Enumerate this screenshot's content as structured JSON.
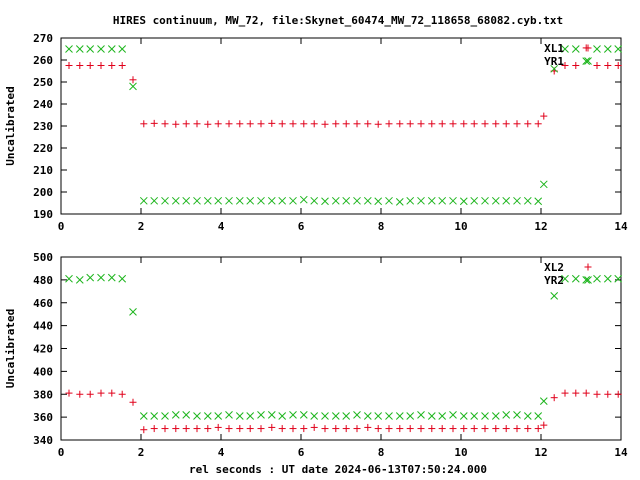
{
  "title": "HIRES continuum, MW_72, file:Skynet_60474_MW_72_118658_68082.cyb.txt",
  "xlabel": "rel seconds : UT date 2024-06-13T07:50:24.000",
  "colors": {
    "plus": "#e0001a",
    "cross": "#1db51d"
  },
  "chart_data": [
    {
      "type": "scatter",
      "ylabel": "Uncalibrated",
      "xlim": [
        0,
        14
      ],
      "ylim": [
        190,
        270
      ],
      "xticks": [
        0,
        2,
        4,
        6,
        8,
        10,
        12,
        14
      ],
      "yticks": [
        190,
        200,
        210,
        220,
        230,
        240,
        250,
        260,
        270
      ],
      "series": [
        {
          "name": "XL1",
          "marker": "plus",
          "x": [
            0.2,
            0.47,
            0.73,
            1.0,
            1.27,
            1.53,
            1.8,
            2.07,
            2.33,
            2.6,
            2.87,
            3.13,
            3.4,
            3.67,
            3.93,
            4.2,
            4.47,
            4.73,
            5.0,
            5.27,
            5.53,
            5.8,
            6.07,
            6.33,
            6.6,
            6.87,
            7.13,
            7.4,
            7.67,
            7.93,
            8.2,
            8.47,
            8.73,
            9.0,
            9.27,
            9.53,
            9.8,
            10.07,
            10.33,
            10.6,
            10.87,
            11.13,
            11.4,
            11.67,
            11.93,
            12.07,
            12.33,
            12.6,
            12.87,
            13.13,
            13.4,
            13.67,
            13.93
          ],
          "y": [
            257.5,
            257.5,
            257.5,
            257.5,
            257.5,
            257.5,
            251,
            231,
            231.2,
            231,
            230.8,
            231,
            231,
            230.8,
            231,
            231,
            231,
            231,
            231,
            231.2,
            231,
            231,
            231,
            231,
            230.8,
            231,
            231,
            231,
            231,
            230.8,
            231,
            231,
            231,
            231,
            231,
            231,
            231,
            231,
            231,
            231,
            231,
            231,
            231,
            231,
            231,
            234.5,
            255,
            257.5,
            257.5,
            265.5,
            257.5,
            257.5,
            257.5
          ]
        },
        {
          "name": "YR1",
          "marker": "cross",
          "x": [
            0.2,
            0.47,
            0.73,
            1.0,
            1.27,
            1.53,
            1.8,
            2.07,
            2.33,
            2.6,
            2.87,
            3.13,
            3.4,
            3.67,
            3.93,
            4.2,
            4.47,
            4.73,
            5.0,
            5.27,
            5.53,
            5.8,
            6.07,
            6.33,
            6.6,
            6.87,
            7.13,
            7.4,
            7.67,
            7.93,
            8.2,
            8.47,
            8.73,
            9.0,
            9.27,
            9.53,
            9.8,
            10.07,
            10.33,
            10.6,
            10.87,
            11.13,
            11.4,
            11.67,
            11.93,
            12.07,
            12.33,
            12.6,
            12.87,
            13.13,
            13.4,
            13.67,
            13.93
          ],
          "y": [
            265,
            265,
            265,
            265,
            265,
            265,
            248,
            196,
            196,
            196,
            196,
            196,
            196,
            196,
            196,
            196,
            196,
            196,
            196,
            196,
            196,
            196,
            196.5,
            196,
            195.8,
            196,
            196,
            196,
            196,
            195.8,
            196,
            195.5,
            196,
            196,
            196,
            196,
            196,
            195.8,
            196,
            196,
            196,
            196,
            196,
            196,
            195.8,
            203.5,
            256,
            265,
            265,
            259.5,
            265,
            265,
            265
          ]
        }
      ]
    },
    {
      "type": "scatter",
      "ylabel": "Uncalibrated",
      "xlim": [
        0,
        14
      ],
      "ylim": [
        340,
        500
      ],
      "xticks": [
        0,
        2,
        4,
        6,
        8,
        10,
        12,
        14
      ],
      "yticks": [
        340,
        360,
        380,
        400,
        420,
        440,
        460,
        480,
        500
      ],
      "series": [
        {
          "name": "XL2",
          "marker": "plus",
          "x": [
            0.2,
            0.47,
            0.73,
            1.0,
            1.27,
            1.53,
            1.8,
            2.07,
            2.33,
            2.6,
            2.87,
            3.13,
            3.4,
            3.67,
            3.93,
            4.2,
            4.47,
            4.73,
            5.0,
            5.27,
            5.53,
            5.8,
            6.07,
            6.33,
            6.6,
            6.87,
            7.13,
            7.4,
            7.67,
            7.93,
            8.2,
            8.47,
            8.73,
            9.0,
            9.27,
            9.53,
            9.8,
            10.07,
            10.33,
            10.6,
            10.87,
            11.13,
            11.4,
            11.67,
            11.93,
            12.07,
            12.33,
            12.6,
            12.87,
            13.13,
            13.4,
            13.67,
            13.93
          ],
          "y": [
            381,
            380,
            380,
            381,
            381,
            380,
            373,
            349,
            350,
            350,
            350,
            350,
            350,
            350,
            351,
            350,
            350,
            350,
            350,
            351,
            350,
            350,
            350,
            351,
            350,
            350,
            350,
            350,
            351,
            350,
            350,
            350,
            350,
            350,
            350,
            350,
            350,
            350,
            350,
            350,
            350,
            350,
            350,
            350,
            350,
            353,
            377,
            381,
            381,
            381,
            380,
            380,
            380
          ]
        },
        {
          "name": "YR2",
          "marker": "cross",
          "x": [
            0.2,
            0.47,
            0.73,
            1.0,
            1.27,
            1.53,
            1.8,
            2.07,
            2.33,
            2.6,
            2.87,
            3.13,
            3.4,
            3.67,
            3.93,
            4.2,
            4.47,
            4.73,
            5.0,
            5.27,
            5.53,
            5.8,
            6.07,
            6.33,
            6.6,
            6.87,
            7.13,
            7.4,
            7.67,
            7.93,
            8.2,
            8.47,
            8.73,
            9.0,
            9.27,
            9.53,
            9.8,
            10.07,
            10.33,
            10.6,
            10.87,
            11.13,
            11.4,
            11.67,
            11.93,
            12.07,
            12.33,
            12.6,
            12.87,
            13.13,
            13.4,
            13.67,
            13.93
          ],
          "y": [
            481,
            480,
            482,
            482,
            482,
            481,
            452,
            361,
            361,
            361,
            362,
            362,
            361,
            361,
            361,
            362,
            361,
            361,
            362,
            362,
            361,
            362,
            362,
            361,
            361,
            361,
            361,
            362,
            361,
            361,
            361,
            361,
            361,
            362,
            361,
            361,
            362,
            361,
            361,
            361,
            361,
            362,
            362,
            361,
            361,
            374,
            466,
            481,
            481,
            480,
            481,
            481,
            481
          ]
        }
      ]
    }
  ]
}
